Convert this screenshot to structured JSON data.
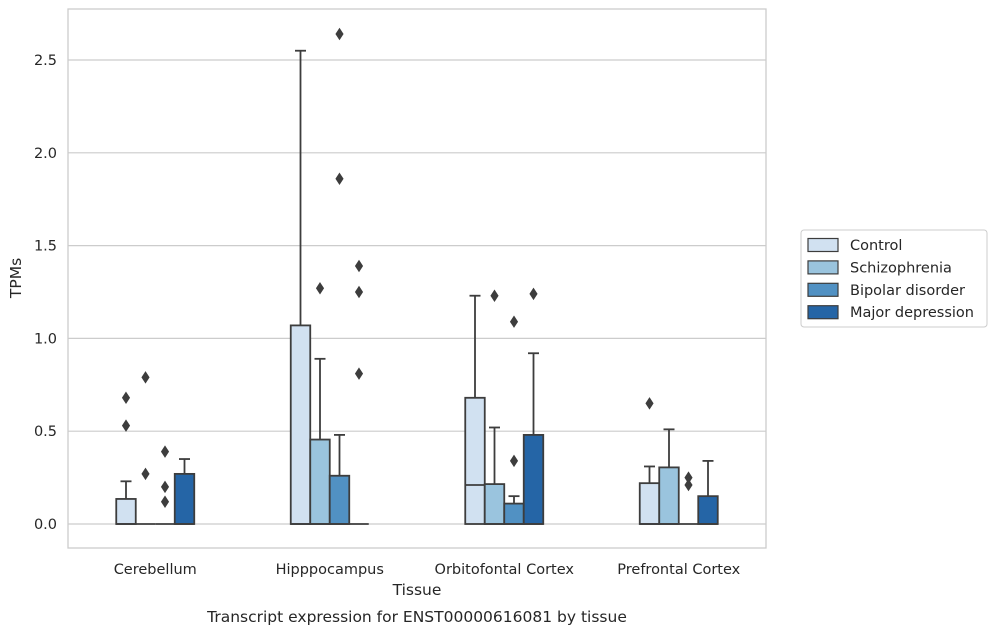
{
  "caption": "Transcript expression for ENST00000616081 by tissue",
  "chart_data": {
    "type": "box",
    "title": "",
    "xlabel": "Tissue",
    "ylabel": "TPMs",
    "ylim": [
      -0.13,
      2.78
    ],
    "yticks": [
      "0.0",
      "0.5",
      "1.0",
      "1.5",
      "2.0",
      "2.5"
    ],
    "grid": "horizontal",
    "legend_position": "right",
    "categories": [
      "Cerebellum",
      "Hipppocampus",
      "Orbitofontal Cortex",
      "Prefrontal Cortex"
    ],
    "series": [
      {
        "name": "Control",
        "color": "#d1e1f1",
        "boxes": [
          {
            "q1": 0,
            "median": 0,
            "q3": 0.135,
            "whisker_low": 0,
            "whisker_high": 0.23,
            "outliers": [
              0.53,
              0.68
            ]
          },
          {
            "q1": 0,
            "median": 0,
            "q3": 1.07,
            "whisker_low": 0,
            "whisker_high": 2.55,
            "outliers": []
          },
          {
            "q1": 0,
            "median": 0.21,
            "q3": 0.68,
            "whisker_low": 0,
            "whisker_high": 1.23,
            "outliers": []
          },
          {
            "q1": 0,
            "median": 0,
            "q3": 0.22,
            "whisker_low": 0,
            "whisker_high": 0.31,
            "outliers": [
              0.65
            ]
          }
        ]
      },
      {
        "name": "Schizophrenia",
        "color": "#9ac4de",
        "boxes": [
          {
            "q1": 0,
            "median": 0,
            "q3": 0,
            "whisker_low": 0,
            "whisker_high": 0,
            "outliers": [
              0.27,
              0.79
            ]
          },
          {
            "q1": 0,
            "median": 0,
            "q3": 0.455,
            "whisker_low": 0,
            "whisker_high": 0.89,
            "outliers": [
              1.27
            ]
          },
          {
            "q1": 0,
            "median": 0,
            "q3": 0.215,
            "whisker_low": 0,
            "whisker_high": 0.52,
            "outliers": [
              1.23
            ]
          },
          {
            "q1": 0,
            "median": 0,
            "q3": 0.305,
            "whisker_low": 0,
            "whisker_high": 0.51,
            "outliers": []
          }
        ]
      },
      {
        "name": "Bipolar disorder",
        "color": "#5191c3",
        "boxes": [
          {
            "q1": 0,
            "median": 0,
            "q3": 0,
            "whisker_low": 0,
            "whisker_high": 0,
            "outliers": [
              0.12,
              0.2,
              0.39
            ]
          },
          {
            "q1": 0,
            "median": 0,
            "q3": 0.26,
            "whisker_low": 0,
            "whisker_high": 0.48,
            "outliers": [
              1.86,
              2.64
            ]
          },
          {
            "q1": 0,
            "median": 0,
            "q3": 0.11,
            "whisker_low": 0,
            "whisker_high": 0.15,
            "outliers": [
              0.34,
              1.09
            ]
          },
          {
            "q1": 0,
            "median": 0,
            "q3": 0,
            "whisker_low": 0,
            "whisker_high": 0,
            "outliers": [
              0.21,
              0.25
            ]
          }
        ]
      },
      {
        "name": "Major depression",
        "color": "#2565a6",
        "boxes": [
          {
            "q1": 0,
            "median": 0,
            "q3": 0.27,
            "whisker_low": 0,
            "whisker_high": 0.35,
            "outliers": []
          },
          {
            "q1": 0,
            "median": 0,
            "q3": 0,
            "whisker_low": 0,
            "whisker_high": 0,
            "outliers": [
              0.81,
              1.25,
              1.39
            ]
          },
          {
            "q1": 0,
            "median": 0,
            "q3": 0.48,
            "whisker_low": 0,
            "whisker_high": 0.92,
            "outliers": [
              1.24
            ]
          },
          {
            "q1": 0,
            "median": 0,
            "q3": 0.15,
            "whisker_low": 0,
            "whisker_high": 0.34,
            "outliers": []
          }
        ]
      }
    ]
  }
}
